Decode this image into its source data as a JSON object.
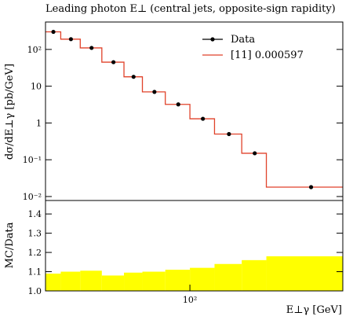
{
  "chart_data": [
    {
      "type": "histogram",
      "title": "Leading photon E⊥ (central jets, opposite-sign rapidity)",
      "y_label": "dσ/dE⊥γ [pb/GeV]",
      "log_x": true,
      "log_y": true,
      "bins": [
        27,
        31,
        37,
        45,
        55,
        65,
        80,
        100,
        125,
        160,
        200,
        400
      ],
      "series": [
        {
          "name": "Data",
          "color": "#000000",
          "values": [
            300,
            190,
            110,
            45,
            18,
            7,
            3.2,
            1.3,
            0.5,
            0.15,
            0.018
          ]
        },
        {
          "name": "[11] 0.000597",
          "color": "#e0422a",
          "values": [
            300,
            190,
            110,
            45,
            18,
            7,
            3.2,
            1.3,
            0.5,
            0.15,
            0.018
          ]
        }
      ],
      "xlim": [
        27,
        400
      ],
      "ylim": [
        0.0078,
        556
      ],
      "yticks": [
        {
          "value": 0.01,
          "label": "10⁻²"
        },
        {
          "value": 0.1,
          "label": "10⁻¹"
        },
        1,
        10,
        {
          "value": 100,
          "label": "10²"
        }
      ]
    },
    {
      "type": "histogram",
      "y_label": "MC/Data",
      "x_label": "E⊥γ [GeV]",
      "log_x": true,
      "bins": [
        27,
        31,
        37,
        45,
        55,
        65,
        80,
        100,
        125,
        160,
        200,
        400
      ],
      "color": "#ffff00",
      "values": [
        1.09,
        1.1,
        1.105,
        1.08,
        1.095,
        1.1,
        1.11,
        1.12,
        1.14,
        1.16,
        1.18
      ],
      "xlim": [
        27,
        400
      ],
      "ylim": [
        1.0,
        1.47
      ],
      "xticks": [
        {
          "value": 100,
          "label": "10²"
        }
      ],
      "yticks": [
        {
          "value": 1.0,
          "label": "1.0"
        },
        1.1,
        1.2,
        1.3,
        1.4
      ]
    }
  ]
}
